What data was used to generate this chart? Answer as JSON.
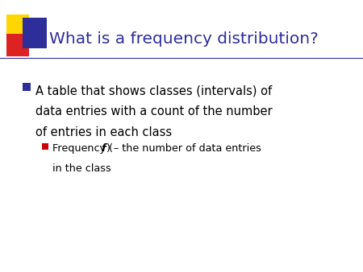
{
  "title": "What is a frequency distribution?",
  "title_color": "#2E2E9A",
  "title_fontsize": 14.5,
  "background_color": "#FFFFFF",
  "bullet1_line1": "A table that shows classes (intervals) of",
  "bullet1_line2": "data entries with a count of the number",
  "bullet1_line3": "of entries in each class",
  "bullet2_pre": "Frequency (",
  "bullet2_italic": "f",
  "bullet2_post": ") – the number of data entries",
  "bullet2_line2": "in the class",
  "text_color": "#000000",
  "bullet1_marker_color": "#2E2E9A",
  "bullet2_marker_color": "#CC0000",
  "deco_yellow": "#FFD700",
  "deco_red": "#DD2222",
  "deco_blue": "#2E2E9A",
  "separator_color": "#2E2E9A"
}
